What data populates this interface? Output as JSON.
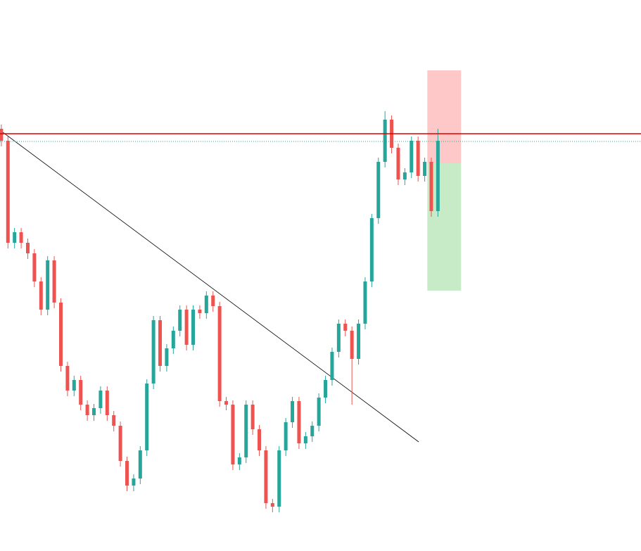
{
  "chart_data": {
    "type": "candlestick",
    "open": [
      600,
      583,
      438,
      453,
      438,
      423,
      383,
      343,
      413,
      353,
      263,
      228,
      243,
      208,
      193,
      203,
      228,
      193,
      178,
      128,
      93,
      103,
      143,
      238,
      328,
      263,
      288,
      313,
      343,
      293,
      343,
      338,
      363,
      348,
      213,
      208,
      123,
      133,
      208,
      173,
      143,
      68,
      63,
      143,
      183,
      213,
      153,
      163,
      178,
      218,
      243,
      283,
      323,
      313,
      273,
      323,
      383,
      473,
      553,
      613,
      573,
      528,
      538,
      583,
      533,
      553,
      483
    ],
    "high": [
      606,
      589,
      459,
      459,
      444,
      429,
      389,
      419,
      419,
      359,
      269,
      249,
      249,
      214,
      209,
      234,
      234,
      199,
      184,
      134,
      109,
      149,
      244,
      334,
      334,
      294,
      319,
      349,
      349,
      349,
      349,
      369,
      369,
      354,
      219,
      214,
      139,
      214,
      214,
      179,
      149,
      74,
      149,
      189,
      219,
      219,
      169,
      184,
      224,
      249,
      289,
      329,
      329,
      319,
      329,
      389,
      479,
      559,
      625,
      619,
      579,
      544,
      589,
      589,
      559,
      559,
      600
    ],
    "low": [
      575,
      430,
      430,
      430,
      415,
      375,
      335,
      335,
      345,
      255,
      220,
      220,
      200,
      185,
      185,
      195,
      185,
      170,
      120,
      85,
      85,
      95,
      135,
      230,
      255,
      255,
      280,
      305,
      285,
      285,
      330,
      330,
      340,
      205,
      200,
      115,
      115,
      125,
      165,
      135,
      60,
      55,
      55,
      135,
      175,
      145,
      145,
      155,
      170,
      210,
      235,
      275,
      305,
      208,
      265,
      315,
      375,
      465,
      545,
      565,
      520,
      520,
      530,
      525,
      525,
      475,
      475
    ],
    "close": [
      583,
      438,
      453,
      438,
      423,
      383,
      343,
      413,
      353,
      263,
      228,
      243,
      208,
      193,
      203,
      228,
      193,
      178,
      128,
      93,
      103,
      143,
      238,
      328,
      263,
      288,
      313,
      343,
      293,
      343,
      338,
      363,
      348,
      213,
      208,
      123,
      133,
      208,
      173,
      143,
      68,
      63,
      143,
      183,
      213,
      153,
      163,
      178,
      218,
      243,
      283,
      323,
      313,
      273,
      323,
      383,
      473,
      553,
      613,
      573,
      528,
      538,
      583,
      533,
      553,
      483,
      583
    ],
    "up_color": "#26a69a",
    "down_color": "#ef5350",
    "xlim": [
      -0.2,
      96.7
    ],
    "ylim": [
      0,
      783
    ],
    "hlines": [
      {
        "value": 593,
        "color": "#e00000",
        "dash": false
      },
      {
        "value": 582,
        "color": "#26a69a",
        "dash": true
      }
    ],
    "trendline": {
      "x": [
        -0.2,
        63.1
      ],
      "y": [
        598,
        155
      ],
      "color": "#000000"
    },
    "position": {
      "x": [
        64.4,
        69.5
      ],
      "entry": 551,
      "stop": 683,
      "target": 370,
      "loss_color": "#ff9a9a",
      "profit_color": "#b4e4b4"
    }
  }
}
